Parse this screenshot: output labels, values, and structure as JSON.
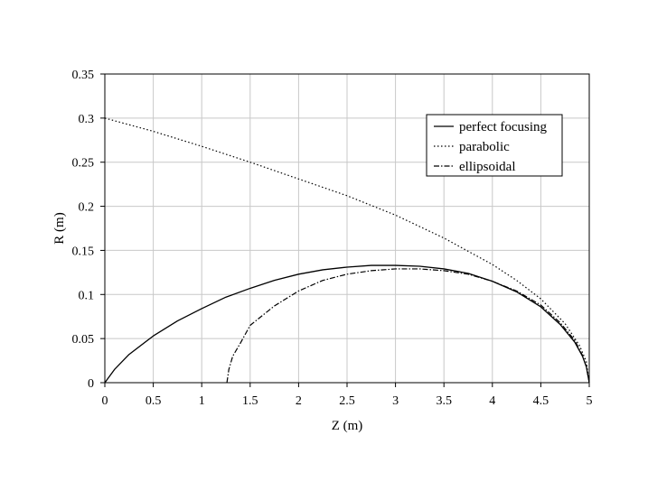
{
  "chart_data": {
    "type": "line",
    "title": "",
    "xlabel": "Z (m)",
    "ylabel": "R (m)",
    "xlim": [
      0,
      5
    ],
    "ylim": [
      0,
      0.35
    ],
    "x_ticks": [
      "0",
      "0.5",
      "1",
      "1.5",
      "2",
      "2.5",
      "3",
      "3.5",
      "4",
      "4.5",
      "5"
    ],
    "y_ticks": [
      "0",
      "0.05",
      "0.1",
      "0.15",
      "0.2",
      "0.25",
      "0.3",
      "0.35"
    ],
    "grid": true,
    "legend_position": "top-right",
    "series": [
      {
        "name": "perfect focusing",
        "style": "solid",
        "color": "#000000",
        "points": [
          [
            0,
            0
          ],
          [
            0.1,
            0.015
          ],
          [
            0.25,
            0.032
          ],
          [
            0.5,
            0.053
          ],
          [
            0.75,
            0.07
          ],
          [
            1,
            0.084
          ],
          [
            1.25,
            0.097
          ],
          [
            1.5,
            0.107
          ],
          [
            1.75,
            0.116
          ],
          [
            2,
            0.123
          ],
          [
            2.25,
            0.128
          ],
          [
            2.5,
            0.131
          ],
          [
            2.75,
            0.133
          ],
          [
            3,
            0.133
          ],
          [
            3.25,
            0.132
          ],
          [
            3.5,
            0.129
          ],
          [
            3.75,
            0.124
          ],
          [
            4,
            0.115
          ],
          [
            4.25,
            0.103
          ],
          [
            4.5,
            0.086
          ],
          [
            4.7,
            0.066
          ],
          [
            4.85,
            0.046
          ],
          [
            4.93,
            0.03
          ],
          [
            4.97,
            0.018
          ],
          [
            5,
            0
          ]
        ]
      },
      {
        "name": "parabolic",
        "style": "dotted",
        "color": "#000000",
        "points": [
          [
            0,
            0.3
          ],
          [
            0.5,
            0.285
          ],
          [
            1,
            0.268
          ],
          [
            1.5,
            0.25
          ],
          [
            2,
            0.231
          ],
          [
            2.5,
            0.212
          ],
          [
            3,
            0.19
          ],
          [
            3.5,
            0.164
          ],
          [
            4,
            0.134
          ],
          [
            4.25,
            0.116
          ],
          [
            4.5,
            0.095
          ],
          [
            4.75,
            0.067
          ],
          [
            4.9,
            0.042
          ],
          [
            4.97,
            0.024
          ],
          [
            5,
            0
          ]
        ]
      },
      {
        "name": "ellipsoidal",
        "style": "dashdot",
        "color": "#000000",
        "points": [
          [
            1.26,
            0
          ],
          [
            1.28,
            0.015
          ],
          [
            1.32,
            0.03
          ],
          [
            1.4,
            0.045
          ],
          [
            1.5,
            0.065
          ],
          [
            1.75,
            0.087
          ],
          [
            2,
            0.104
          ],
          [
            2.25,
            0.116
          ],
          [
            2.5,
            0.123
          ],
          [
            2.75,
            0.127
          ],
          [
            3,
            0.129
          ],
          [
            3.25,
            0.129
          ],
          [
            3.5,
            0.127
          ],
          [
            3.75,
            0.123
          ],
          [
            4,
            0.115
          ],
          [
            4.25,
            0.104
          ],
          [
            4.5,
            0.088
          ],
          [
            4.7,
            0.068
          ],
          [
            4.85,
            0.048
          ],
          [
            4.93,
            0.031
          ],
          [
            4.97,
            0.018
          ],
          [
            5,
            0
          ]
        ]
      }
    ]
  }
}
